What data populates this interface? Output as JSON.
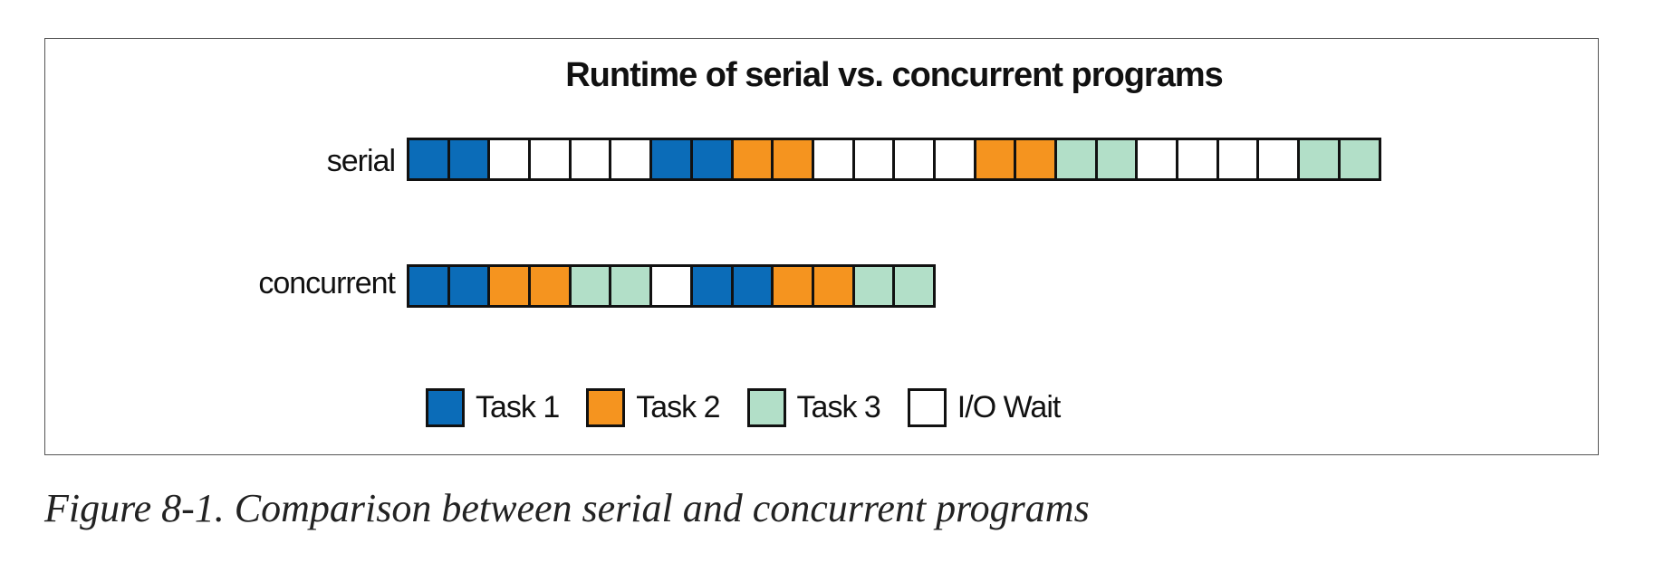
{
  "figure": {
    "title": "Runtime of serial vs. concurrent programs",
    "caption": "Figure 8-1. Comparison between serial and concurrent programs"
  },
  "colors": {
    "task1": "#0b6cb8",
    "task2": "#f5941f",
    "task3": "#b2dfc8",
    "io": "#ffffff",
    "border": "#111111"
  },
  "rows": [
    {
      "label": "serial",
      "cells": [
        "task1",
        "task1",
        "io",
        "io",
        "io",
        "io",
        "task1",
        "task1",
        "task2",
        "task2",
        "io",
        "io",
        "io",
        "io",
        "task2",
        "task2",
        "task3",
        "task3",
        "io",
        "io",
        "io",
        "io",
        "task3",
        "task3"
      ]
    },
    {
      "label": "concurrent",
      "cells": [
        "task1",
        "task1",
        "task2",
        "task2",
        "task3",
        "task3",
        "io",
        "task1",
        "task1",
        "task2",
        "task2",
        "task3",
        "task3"
      ]
    }
  ],
  "legend": [
    {
      "key": "task1",
      "label": "Task 1"
    },
    {
      "key": "task2",
      "label": "Task 2"
    },
    {
      "key": "task3",
      "label": "Task 3"
    },
    {
      "key": "io",
      "label": "I/O Wait"
    }
  ]
}
